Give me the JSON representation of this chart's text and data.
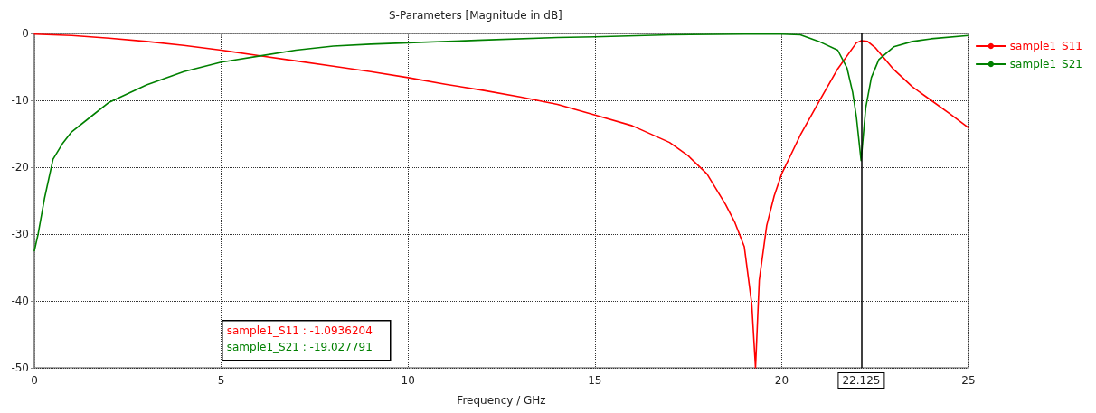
{
  "chart_data": {
    "type": "line",
    "title": "S-Parameters [Magnitude in dB]",
    "xlabel": "Frequency / GHz",
    "xlim": [
      0,
      25
    ],
    "xticks": [
      0,
      5,
      10,
      15,
      20,
      25
    ],
    "ylim": [
      -50,
      0
    ],
    "yticks": [
      -50,
      -40,
      -30,
      -20,
      -10,
      0
    ],
    "grid": true,
    "legend": "top right",
    "marker": "none",
    "line_style": "solid",
    "ref_lines": [
      {
        "axis": "x",
        "value": 22.125,
        "label": "22.125",
        "color": "#000000"
      }
    ],
    "annotations": [
      "sample1_S11 : -1.0936204",
      "sample1_S21 : -19.027791"
    ],
    "series": [
      {
        "name": "sample1_S11",
        "color": "#ff0000",
        "x": [
          0,
          1,
          2,
          3,
          4,
          5,
          6,
          7,
          8,
          9,
          10,
          11,
          12,
          13,
          14,
          15,
          16,
          17,
          17.5,
          18,
          18.5,
          18.75,
          19,
          19.2,
          19.3,
          19.4,
          19.6,
          19.8,
          20,
          20.5,
          21,
          21.5,
          22,
          22.125,
          22.3,
          22.5,
          23,
          23.5,
          24,
          24.5,
          25
        ],
        "values": [
          -0.1,
          -0.3,
          -0.7,
          -1.2,
          -1.8,
          -2.5,
          -3.3,
          -4.1,
          -4.9,
          -5.7,
          -6.6,
          -7.6,
          -8.5,
          -9.5,
          -10.6,
          -12.2,
          -13.8,
          -16.3,
          -18.3,
          -21,
          -25.6,
          -28.3,
          -31.9,
          -40.5,
          -50,
          -36.9,
          -28.7,
          -24.3,
          -21,
          -15.2,
          -10.2,
          -5.3,
          -1.4,
          -1.1,
          -1.2,
          -2.1,
          -5.4,
          -8,
          -10,
          -12,
          -14.1
        ]
      },
      {
        "name": "sample1_S21",
        "color": "#008000",
        "x": [
          0,
          0.1,
          0.27,
          0.5,
          0.75,
          1,
          1.5,
          2,
          3,
          4,
          5,
          6,
          7,
          8,
          9,
          10,
          12,
          14,
          15,
          17,
          19,
          20,
          20.5,
          21,
          21.5,
          21.75,
          21.9,
          22,
          22.125,
          22.25,
          22.4,
          22.6,
          23,
          23.5,
          24,
          25
        ],
        "values": [
          -32.5,
          -30,
          -24.7,
          -18.8,
          -16.5,
          -14.7,
          -12.5,
          -10.3,
          -7.7,
          -5.7,
          -4.3,
          -3.4,
          -2.5,
          -1.9,
          -1.6,
          -1.4,
          -1,
          -0.6,
          -0.5,
          -0.2,
          -0.1,
          -0.1,
          -0.2,
          -1.2,
          -2.5,
          -5.2,
          -8.8,
          -12.5,
          -19,
          -11.1,
          -6.6,
          -3.9,
          -2,
          -1.2,
          -0.8,
          -0.3
        ]
      }
    ]
  }
}
